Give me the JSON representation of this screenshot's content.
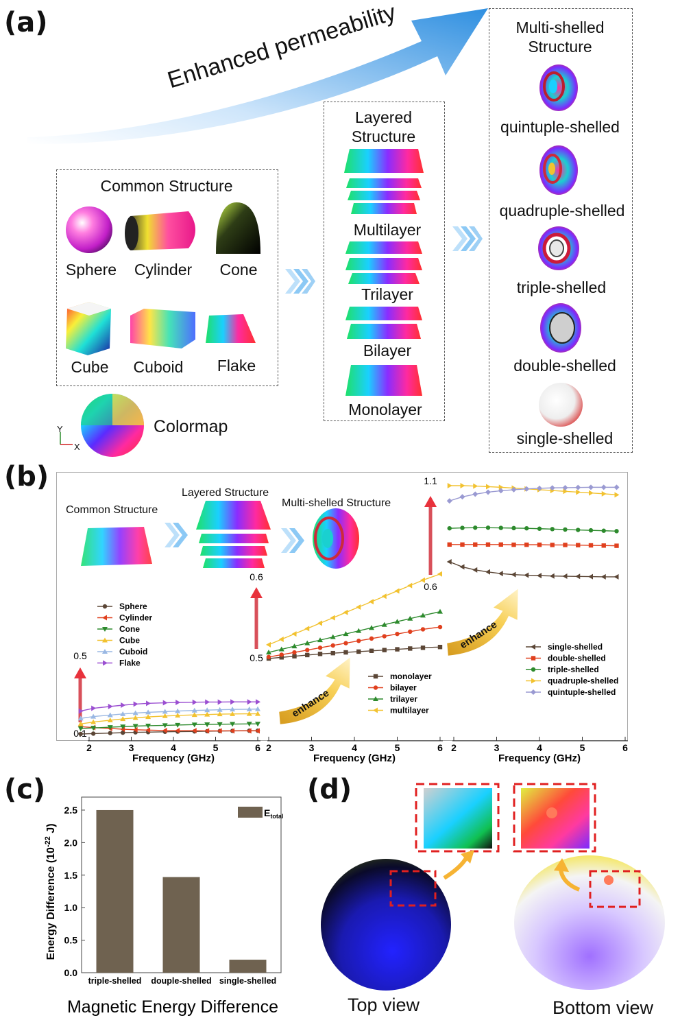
{
  "panels": {
    "a": "(a)",
    "b": "(b)",
    "c": "(c)",
    "d": "(d)"
  },
  "panel_a": {
    "arrow_label": "Enhanced permeability",
    "common": {
      "title": "Common Structure",
      "items": [
        "Sphere",
        "Cylinder",
        "Cone",
        "Cube",
        "Cuboid",
        "Flake"
      ]
    },
    "layered": {
      "title_line1": "Layered",
      "title_line2": "Structure",
      "items": [
        "Multilayer",
        "Trilayer",
        "Bilayer",
        "Monolayer"
      ]
    },
    "multishell": {
      "title_line1": "Multi-shelled",
      "title_line2": "Structure",
      "items": [
        "quintuple-shelled",
        "quadruple-shelled",
        "triple-shelled",
        "double-shelled",
        "single-shelled"
      ]
    },
    "colormap": {
      "label": "Colormap",
      "y": "Y",
      "x": "X"
    }
  },
  "panel_b": {
    "inset_common": "Common Structure",
    "inset_layered": "Layered Structure",
    "inset_multishell": "Multi-shelled Structure",
    "enhance_label": "enhance"
  },
  "panel_d": {
    "top": "Top view",
    "bottom": "Bottom view"
  },
  "chart_data": [
    {
      "type": "line",
      "id": "b-common",
      "xlabel": "Frequency (GHz)",
      "xlim": [
        2,
        6
      ],
      "xticks": [
        "2",
        "3",
        "4",
        "5",
        "6"
      ],
      "ylim": [
        0.1,
        0.5
      ],
      "yticks": [
        "0.1",
        "0.5"
      ],
      "x": [
        1.8,
        2.1,
        2.5,
        2.8,
        3.1,
        3.4,
        3.8,
        4.1,
        4.5,
        4.8,
        5.1,
        5.4,
        5.8,
        6.0
      ],
      "series": [
        {
          "name": "Sphere",
          "color": "#5b4636",
          "marker": "circle",
          "values": [
            0.1,
            0.102,
            0.105,
            0.107,
            0.109,
            0.11,
            0.112,
            0.113,
            0.114,
            0.115,
            0.116,
            0.117,
            0.118,
            0.118
          ]
        },
        {
          "name": "Cylinder",
          "color": "#e0401e",
          "marker": "tri-left",
          "values": [
            0.14,
            0.135,
            0.13,
            0.126,
            0.123,
            0.121,
            0.119,
            0.118,
            0.118,
            0.117,
            0.117,
            0.117,
            0.117,
            0.117
          ]
        },
        {
          "name": "Cone",
          "color": "#2d8a2d",
          "marker": "tri-down",
          "values": [
            0.13,
            0.133,
            0.137,
            0.14,
            0.143,
            0.145,
            0.147,
            0.149,
            0.151,
            0.152,
            0.153,
            0.154,
            0.155,
            0.155
          ]
        },
        {
          "name": "Cube",
          "color": "#f2c230",
          "marker": "tri-up",
          "values": [
            0.155,
            0.165,
            0.175,
            0.182,
            0.188,
            0.193,
            0.198,
            0.201,
            0.204,
            0.206,
            0.208,
            0.209,
            0.21,
            0.21
          ]
        },
        {
          "name": "Cuboid",
          "color": "#9ab8e3",
          "marker": "tri-up",
          "values": [
            0.185,
            0.195,
            0.203,
            0.209,
            0.214,
            0.218,
            0.222,
            0.225,
            0.228,
            0.23,
            0.232,
            0.234,
            0.235,
            0.236
          ]
        },
        {
          "name": "Flake",
          "color": "#9b4fd1",
          "marker": "tri-right",
          "values": [
            0.225,
            0.24,
            0.25,
            0.257,
            0.263,
            0.267,
            0.27,
            0.272,
            0.273,
            0.274,
            0.274,
            0.275,
            0.275,
            0.275
          ]
        }
      ]
    },
    {
      "type": "line",
      "id": "b-layered",
      "xlabel": "Frequency (GHz)",
      "xlim": [
        2,
        6
      ],
      "xticks": [
        "2",
        "3",
        "4",
        "5",
        "6"
      ],
      "ylim": [
        0.5,
        0.6
      ],
      "yticks": [
        "0.5",
        "0.6"
      ],
      "x": [
        2.0,
        2.3,
        2.6,
        2.9,
        3.2,
        3.5,
        3.8,
        4.1,
        4.4,
        4.7,
        5.0,
        5.3,
        5.6,
        6.0
      ],
      "series": [
        {
          "name": "monolayer",
          "color": "#5b4636",
          "marker": "square",
          "values": [
            0.5,
            0.5015,
            0.503,
            0.5045,
            0.506,
            0.507,
            0.508,
            0.509,
            0.51,
            0.511,
            0.512,
            0.513,
            0.514,
            0.515
          ]
        },
        {
          "name": "bilayer",
          "color": "#e0401e",
          "marker": "circle",
          "values": [
            0.502,
            0.505,
            0.508,
            0.511,
            0.514,
            0.517,
            0.52,
            0.523,
            0.526,
            0.529,
            0.532,
            0.535,
            0.538,
            0.541
          ]
        },
        {
          "name": "trilayer",
          "color": "#2d8a2d",
          "marker": "tri-up",
          "values": [
            0.508,
            0.512,
            0.516,
            0.52,
            0.524,
            0.528,
            0.532,
            0.536,
            0.54,
            0.544,
            0.548,
            0.552,
            0.556,
            0.561
          ]
        },
        {
          "name": "multilayer",
          "color": "#f2c230",
          "marker": "tri-left",
          "values": [
            0.518,
            0.525,
            0.532,
            0.539,
            0.546,
            0.553,
            0.56,
            0.567,
            0.574,
            0.581,
            0.588,
            0.595,
            0.602,
            0.61
          ]
        }
      ]
    },
    {
      "type": "line",
      "id": "b-multishell",
      "xlabel": "Frequency (GHz)",
      "xlim": [
        2,
        6
      ],
      "xticks": [
        "2",
        "3",
        "4",
        "5",
        "6"
      ],
      "ylim": [
        0.6,
        1.1
      ],
      "yticks": [
        "0.6",
        "1.1"
      ],
      "x": [
        1.9,
        2.2,
        2.5,
        2.8,
        3.1,
        3.4,
        3.7,
        4.0,
        4.3,
        4.6,
        4.9,
        5.2,
        5.5,
        5.8
      ],
      "series": [
        {
          "name": "single-shelled",
          "color": "#5b4636",
          "marker": "tri-left",
          "values": [
            0.725,
            0.7,
            0.685,
            0.675,
            0.667,
            0.662,
            0.659,
            0.657,
            0.655,
            0.654,
            0.653,
            0.652,
            0.651,
            0.651
          ]
        },
        {
          "name": "double-shelled",
          "color": "#e0401e",
          "marker": "square",
          "values": [
            0.81,
            0.81,
            0.81,
            0.81,
            0.81,
            0.809,
            0.809,
            0.809,
            0.808,
            0.808,
            0.807,
            0.806,
            0.805,
            0.804
          ]
        },
        {
          "name": "triple-shelled",
          "color": "#2d8a2d",
          "marker": "circle",
          "values": [
            0.89,
            0.892,
            0.893,
            0.893,
            0.892,
            0.891,
            0.89,
            0.888,
            0.886,
            0.884,
            0.882,
            0.88,
            0.878,
            0.876
          ]
        },
        {
          "name": "quadruple-shelled",
          "color": "#f2c230",
          "marker": "tri-right",
          "values": [
            1.1,
            1.1,
            1.098,
            1.095,
            1.092,
            1.088,
            1.084,
            1.08,
            1.076,
            1.072,
            1.068,
            1.064,
            1.06,
            1.055
          ]
        },
        {
          "name": "quintuple-shelled",
          "color": "#9a9ad2",
          "marker": "diamond",
          "values": [
            1.025,
            1.045,
            1.058,
            1.068,
            1.075,
            1.08,
            1.084,
            1.087,
            1.089,
            1.09,
            1.091,
            1.092,
            1.092,
            1.092
          ]
        }
      ]
    },
    {
      "type": "bar",
      "id": "c-energy",
      "title": "Magnetic Energy Difference",
      "ylabel": "Energy Difference (10",
      "ylabel_sup": "-22",
      "ylabel_tail": " J)",
      "legend": "E",
      "legend_sub": "total",
      "color": "#6f6250",
      "categories": [
        "triple-shelled",
        "douple-shelled",
        "single-shelled"
      ],
      "values": [
        2.5,
        1.47,
        0.2
      ],
      "ylim": [
        0,
        2.7
      ],
      "yticks": [
        "0.0",
        "0.5",
        "1.0",
        "1.5",
        "2.0",
        "2.5"
      ]
    }
  ]
}
